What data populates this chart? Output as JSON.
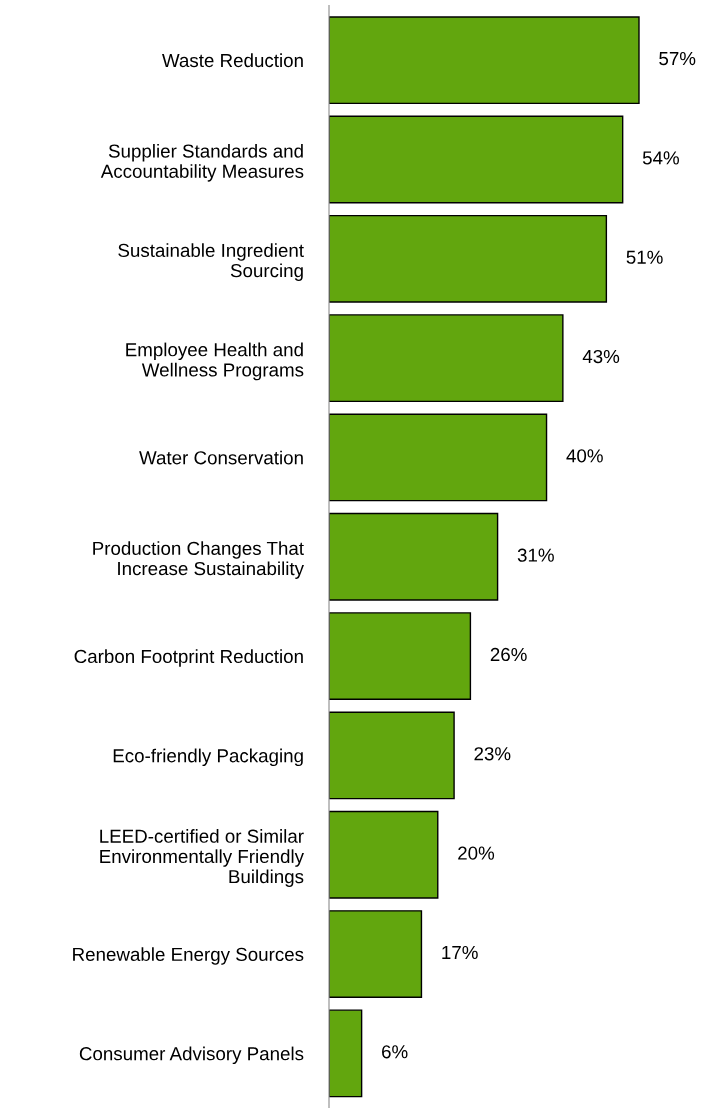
{
  "chart_data": {
    "type": "bar",
    "orientation": "horizontal",
    "categories": [
      "Waste Reduction",
      "Supplier Standards and\nAccountability Measures",
      "Sustainable Ingredient\nSourcing",
      "Employee Health and\nWellness Programs",
      "Water Conservation",
      "Production Changes That\nIncrease Sustainability",
      "Carbon Footprint Reduction",
      "Eco-friendly Packaging",
      "LEED-certified or Similar\nEnvironmentally Friendly\nBuildings",
      "Renewable Energy Sources",
      "Consumer Advisory Panels"
    ],
    "values": [
      57,
      54,
      51,
      43,
      40,
      31,
      26,
      23,
      20,
      17,
      6
    ],
    "value_labels": [
      "57%",
      "54%",
      "51%",
      "43%",
      "40%",
      "31%",
      "26%",
      "23%",
      "20%",
      "17%",
      "6%"
    ],
    "color": "#62a60e",
    "grid": false,
    "legend": false
  }
}
